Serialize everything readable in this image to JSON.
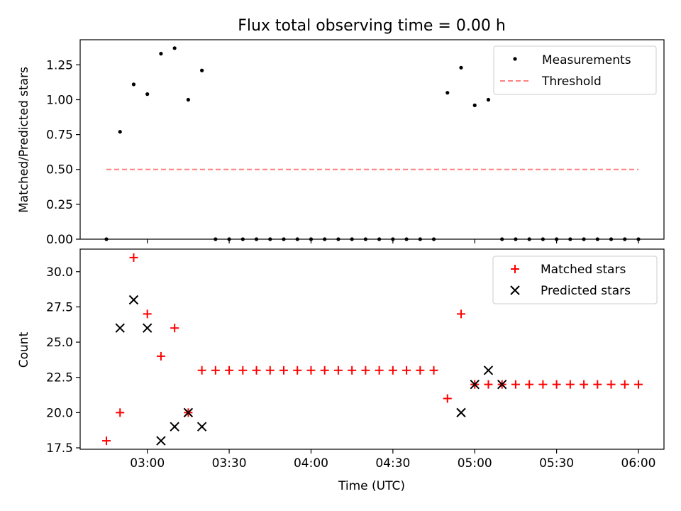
{
  "chart_data": [
    {
      "type": "scatter",
      "title": "Flux total observing time = 0.00 h",
      "xlabel": "",
      "ylabel": "Matched/Predicted stars",
      "ylim": [
        0.0,
        1.43
      ],
      "yticks": [
        "0.00",
        "0.25",
        "0.50",
        "0.75",
        "1.00",
        "1.25"
      ],
      "legend_position": "upper right",
      "series": [
        {
          "name": "Measurements",
          "marker": "dot",
          "color": "#000000",
          "x": [
            "02:45",
            "02:50",
            "02:55",
            "03:00",
            "03:05",
            "03:10",
            "03:15",
            "03:20",
            "03:25",
            "03:30",
            "03:35",
            "03:40",
            "03:45",
            "03:50",
            "03:55",
            "04:00",
            "04:05",
            "04:10",
            "04:15",
            "04:20",
            "04:25",
            "04:30",
            "04:35",
            "04:40",
            "04:45",
            "04:50",
            "04:55",
            "05:00",
            "05:05",
            "05:10",
            "05:15",
            "05:20",
            "05:25",
            "05:30",
            "05:35",
            "05:40",
            "05:45",
            "05:50",
            "05:55",
            "06:00"
          ],
          "values": [
            0.0,
            0.77,
            1.11,
            1.04,
            1.33,
            1.37,
            1.0,
            1.21,
            0.0,
            0.0,
            0.0,
            0.0,
            0.0,
            0.0,
            0.0,
            0.0,
            0.0,
            0.0,
            0.0,
            0.0,
            0.0,
            0.0,
            0.0,
            0.0,
            0.0,
            1.05,
            1.23,
            0.96,
            1.0,
            0.0,
            0.0,
            0.0,
            0.0,
            0.0,
            0.0,
            0.0,
            0.0,
            0.0,
            0.0,
            0.0
          ]
        },
        {
          "name": "Threshold",
          "line": "dashed",
          "color": "#ff7f7f",
          "x": [
            "02:45",
            "06:00"
          ],
          "values": [
            0.5,
            0.5
          ]
        }
      ]
    },
    {
      "type": "scatter",
      "title": "",
      "xlabel": "Time (UTC)",
      "ylabel": "Count",
      "ylim": [
        17.4,
        31.6
      ],
      "yticks": [
        "17.5",
        "20.0",
        "22.5",
        "25.0",
        "27.5",
        "30.0"
      ],
      "xticks": [
        "03:00",
        "03:30",
        "04:00",
        "04:30",
        "05:00",
        "05:30",
        "06:00"
      ],
      "legend_position": "upper right",
      "series": [
        {
          "name": "Matched stars",
          "marker": "plus",
          "color": "#ff0000",
          "x": [
            "02:45",
            "02:50",
            "02:55",
            "03:00",
            "03:05",
            "03:10",
            "03:15",
            "03:20",
            "03:25",
            "03:30",
            "03:35",
            "03:40",
            "03:45",
            "03:50",
            "03:55",
            "04:00",
            "04:05",
            "04:10",
            "04:15",
            "04:20",
            "04:25",
            "04:30",
            "04:35",
            "04:40",
            "04:45",
            "04:50",
            "04:55",
            "05:00",
            "05:05",
            "05:10",
            "05:15",
            "05:20",
            "05:25",
            "05:30",
            "05:35",
            "05:40",
            "05:45",
            "05:50",
            "05:55",
            "06:00"
          ],
          "values": [
            18,
            20,
            31,
            27,
            24,
            26,
            20,
            23,
            23,
            23,
            23,
            23,
            23,
            23,
            23,
            23,
            23,
            23,
            23,
            23,
            23,
            23,
            23,
            23,
            23,
            21,
            27,
            22,
            22,
            22,
            22,
            22,
            22,
            22,
            22,
            22,
            22,
            22,
            22,
            22
          ]
        },
        {
          "name": "Predicted stars",
          "marker": "x",
          "color": "#000000",
          "x": [
            "02:50",
            "02:55",
            "03:00",
            "03:05",
            "03:10",
            "03:15",
            "03:20",
            "04:55",
            "05:00",
            "05:05",
            "05:10"
          ],
          "values": [
            26,
            28,
            26,
            18,
            19,
            20,
            19,
            20,
            22,
            23,
            22
          ]
        }
      ]
    }
  ]
}
